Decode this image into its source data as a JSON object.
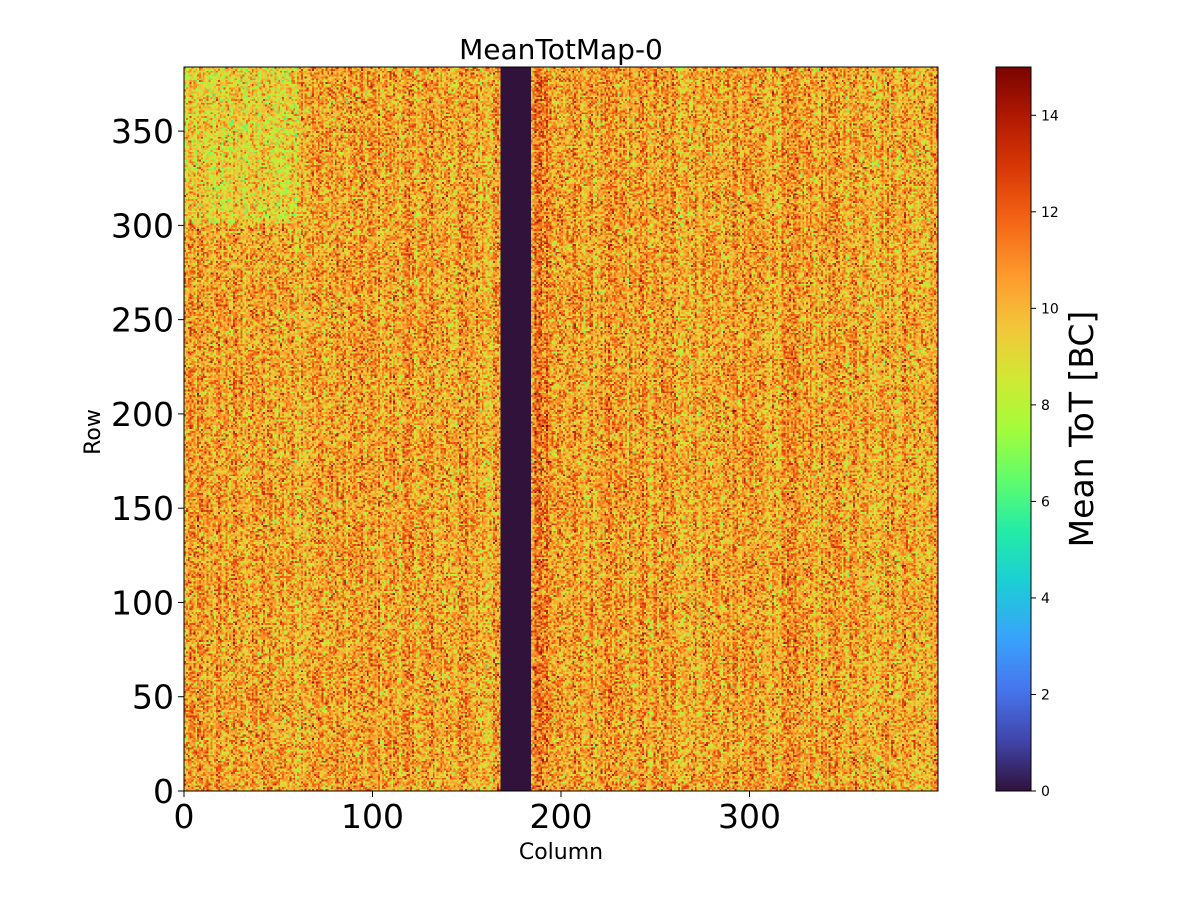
{
  "chart_data": {
    "type": "heatmap",
    "title": "MeanTotMap-0",
    "xlabel": "Column",
    "ylabel": "Row",
    "xlim": [
      0,
      400
    ],
    "ylim": [
      0,
      384
    ],
    "x_ticks": [
      0,
      100,
      200,
      300
    ],
    "y_ticks": [
      0,
      50,
      100,
      150,
      200,
      250,
      300,
      350
    ],
    "x_tick_labels": [
      "0",
      "100",
      "200",
      "300"
    ],
    "y_tick_labels": [
      "0",
      "50",
      "100",
      "150",
      "200",
      "250",
      "300",
      "350"
    ],
    "colorbar": {
      "label": "Mean ToT [BC]",
      "range": [
        0,
        15
      ],
      "ticks": [
        0,
        2,
        4,
        6,
        8,
        10,
        12,
        14
      ],
      "tick_labels": [
        "0",
        "2",
        "4",
        "6",
        "8",
        "10",
        "12",
        "14"
      ],
      "colormap": "turbo"
    },
    "dead_columns": [
      168,
      184
    ],
    "typical_value": 10.5,
    "value_spread": [
      7,
      14
    ]
  }
}
